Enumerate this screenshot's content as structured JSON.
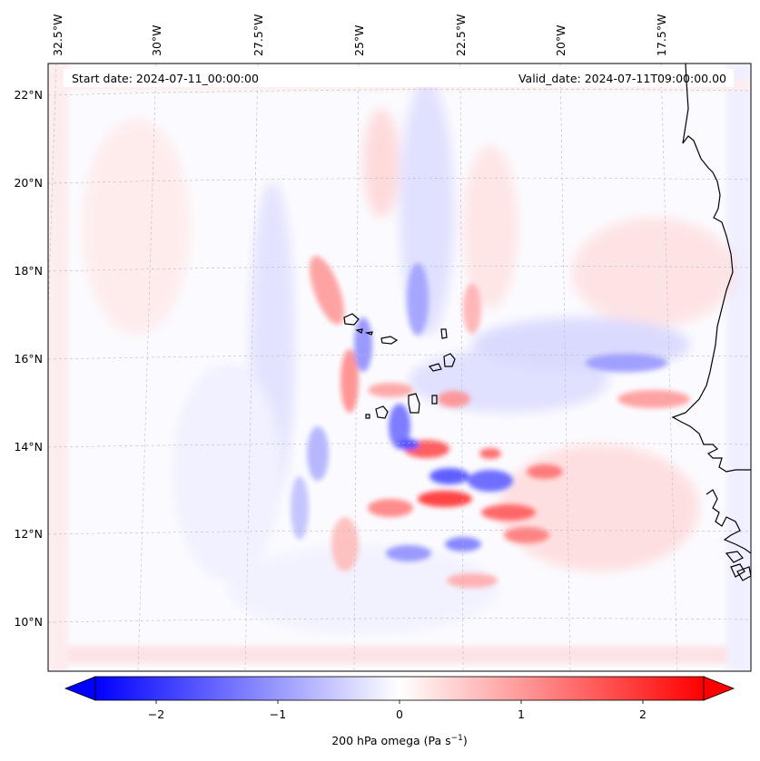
{
  "start_date": "Start date: 2024-07-11_00:00:00",
  "valid_date": "Valid_date: 2024-07-11T09:00:00.00",
  "lon_ticks": [
    "32.5°W",
    "30°W",
    "27.5°W",
    "25°W",
    "22.5°W",
    "20°W",
    "17.5°W"
  ],
  "lat_ticks": [
    "22°N",
    "20°N",
    "18°N",
    "16°N",
    "14°N",
    "12°N",
    "10°N"
  ],
  "colorbar": {
    "label_main": "200 hPa omega (Pa s",
    "label_exp": "−1",
    "label_close": ")",
    "tick_labels": [
      "−2",
      "−1",
      "0",
      "1",
      "2"
    ],
    "ticks": [
      -2,
      -1,
      0,
      1,
      2
    ],
    "vmin": -2.6,
    "vmax": 2.6,
    "colormap": "bwr",
    "low_color": "#0000ff",
    "mid_color": "#ffffff",
    "high_color": "#ff0000"
  },
  "coastline_color": "#000000"
}
